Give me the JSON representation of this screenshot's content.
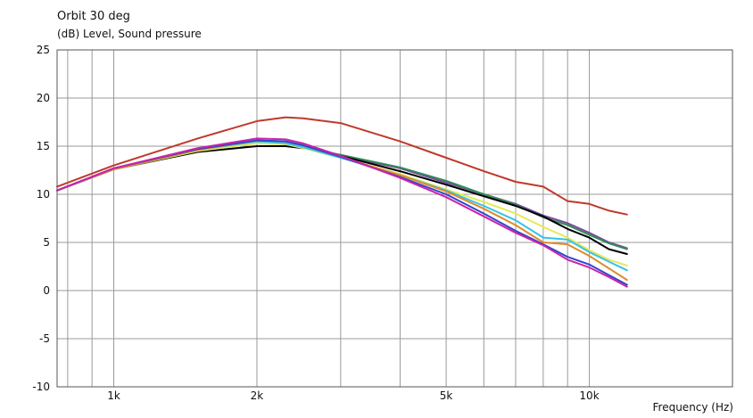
{
  "chart_data": {
    "type": "line",
    "title": "Orbit 30 deg",
    "ylabel": "(dB)  Level, Sound pressure",
    "xlabel": "Frequency  (Hz)",
    "xscale": "log",
    "xlim": [
      760,
      20000
    ],
    "ylim": [
      -10,
      25
    ],
    "yticks": [
      -10,
      -5,
      0,
      5,
      10,
      15,
      20,
      25
    ],
    "xticks": [
      {
        "value": 1000,
        "label": "1k"
      },
      {
        "value": 2000,
        "label": "2k"
      },
      {
        "value": 5000,
        "label": "5k"
      },
      {
        "value": 10000,
        "label": "10k"
      }
    ],
    "grid": true,
    "series": [
      {
        "color": "#C0392B",
        "points": [
          [
            760,
            10.8
          ],
          [
            1000,
            13.0
          ],
          [
            1500,
            15.8
          ],
          [
            2000,
            17.6
          ],
          [
            2300,
            18.0
          ],
          [
            2500,
            17.9
          ],
          [
            3000,
            17.4
          ],
          [
            4000,
            15.5
          ],
          [
            5000,
            13.8
          ],
          [
            6000,
            12.4
          ],
          [
            7000,
            11.3
          ],
          [
            8000,
            10.8
          ],
          [
            9000,
            9.3
          ],
          [
            10000,
            9.0
          ],
          [
            11000,
            8.3
          ],
          [
            12000,
            7.9
          ]
        ]
      },
      {
        "color": "#7A4A9E",
        "points": [
          [
            760,
            10.4
          ],
          [
            1000,
            12.7
          ],
          [
            1500,
            14.6
          ],
          [
            2000,
            15.4
          ],
          [
            2300,
            15.3
          ],
          [
            2500,
            15.0
          ],
          [
            3000,
            14.0
          ],
          [
            4000,
            12.7
          ],
          [
            5000,
            11.2
          ],
          [
            6000,
            10.0
          ],
          [
            7000,
            9.0
          ],
          [
            8000,
            7.8
          ],
          [
            9000,
            7.0
          ],
          [
            10000,
            6.0
          ],
          [
            11000,
            5.0
          ],
          [
            12000,
            4.4
          ]
        ]
      },
      {
        "color": "#2E8B57",
        "points": [
          [
            760,
            10.4
          ],
          [
            1000,
            12.6
          ],
          [
            1500,
            14.5
          ],
          [
            2000,
            15.3
          ],
          [
            2300,
            15.2
          ],
          [
            2500,
            14.9
          ],
          [
            3000,
            14.1
          ],
          [
            4000,
            12.8
          ],
          [
            5000,
            11.4
          ],
          [
            6000,
            10.0
          ],
          [
            7000,
            8.9
          ],
          [
            8000,
            7.6
          ],
          [
            9000,
            6.8
          ],
          [
            10000,
            5.8
          ],
          [
            11000,
            4.9
          ],
          [
            12000,
            4.3
          ]
        ]
      },
      {
        "color": "#000000",
        "points": [
          [
            760,
            10.4
          ],
          [
            1000,
            12.6
          ],
          [
            1500,
            14.4
          ],
          [
            2000,
            15.0
          ],
          [
            2300,
            15.0
          ],
          [
            2500,
            14.8
          ],
          [
            3000,
            14.0
          ],
          [
            4000,
            12.4
          ],
          [
            5000,
            11.0
          ],
          [
            6000,
            9.8
          ],
          [
            7000,
            8.8
          ],
          [
            8000,
            7.7
          ],
          [
            9000,
            6.4
          ],
          [
            10000,
            5.5
          ],
          [
            11000,
            4.3
          ],
          [
            12000,
            3.8
          ]
        ]
      },
      {
        "color": "#E8E858",
        "points": [
          [
            760,
            10.4
          ],
          [
            1000,
            12.6
          ],
          [
            1500,
            14.5
          ],
          [
            2000,
            15.3
          ],
          [
            2300,
            15.2
          ],
          [
            2500,
            14.8
          ],
          [
            3000,
            13.8
          ],
          [
            4000,
            12.1
          ],
          [
            5000,
            10.5
          ],
          [
            6000,
            9.2
          ],
          [
            7000,
            8.0
          ],
          [
            8000,
            6.6
          ],
          [
            9000,
            5.5
          ],
          [
            10000,
            4.2
          ],
          [
            11000,
            3.2
          ],
          [
            12000,
            2.6
          ]
        ]
      },
      {
        "color": "#32C4E6",
        "points": [
          [
            760,
            10.4
          ],
          [
            1000,
            12.6
          ],
          [
            1500,
            14.6
          ],
          [
            2000,
            15.5
          ],
          [
            2300,
            15.3
          ],
          [
            2500,
            14.9
          ],
          [
            3000,
            13.8
          ],
          [
            4000,
            12.0
          ],
          [
            5000,
            10.4
          ],
          [
            6000,
            8.8
          ],
          [
            7000,
            7.3
          ],
          [
            8000,
            5.5
          ],
          [
            9000,
            5.3
          ],
          [
            10000,
            4.0
          ],
          [
            11000,
            3.0
          ],
          [
            12000,
            2.1
          ]
        ]
      },
      {
        "color": "#E08A2A",
        "points": [
          [
            760,
            10.4
          ],
          [
            1000,
            12.6
          ],
          [
            1500,
            14.6
          ],
          [
            2000,
            15.6
          ],
          [
            2300,
            15.5
          ],
          [
            2500,
            15.1
          ],
          [
            3000,
            13.9
          ],
          [
            4000,
            12.0
          ],
          [
            5000,
            10.3
          ],
          [
            6000,
            8.5
          ],
          [
            7000,
            6.8
          ],
          [
            8000,
            5.0
          ],
          [
            9000,
            4.8
          ],
          [
            10000,
            3.6
          ],
          [
            11000,
            2.3
          ],
          [
            12000,
            1.1
          ]
        ]
      },
      {
        "color": "#3344CC",
        "points": [
          [
            760,
            10.4
          ],
          [
            1000,
            12.7
          ],
          [
            1500,
            14.7
          ],
          [
            2000,
            15.6
          ],
          [
            2300,
            15.5
          ],
          [
            2500,
            15.1
          ],
          [
            3000,
            13.9
          ],
          [
            4000,
            11.8
          ],
          [
            5000,
            10.0
          ],
          [
            6000,
            8.0
          ],
          [
            7000,
            6.2
          ],
          [
            8000,
            4.8
          ],
          [
            9000,
            3.5
          ],
          [
            10000,
            2.7
          ],
          [
            11000,
            1.6
          ],
          [
            12000,
            0.6
          ]
        ]
      },
      {
        "color": "#CC22AA",
        "points": [
          [
            760,
            10.4
          ],
          [
            1000,
            12.7
          ],
          [
            1500,
            14.8
          ],
          [
            2000,
            15.8
          ],
          [
            2300,
            15.7
          ],
          [
            2500,
            15.3
          ],
          [
            3000,
            14.0
          ],
          [
            4000,
            11.7
          ],
          [
            5000,
            9.7
          ],
          [
            6000,
            7.7
          ],
          [
            7000,
            6.0
          ],
          [
            8000,
            4.7
          ],
          [
            9000,
            3.2
          ],
          [
            10000,
            2.4
          ],
          [
            11000,
            1.4
          ],
          [
            12000,
            0.4
          ]
        ]
      }
    ]
  }
}
